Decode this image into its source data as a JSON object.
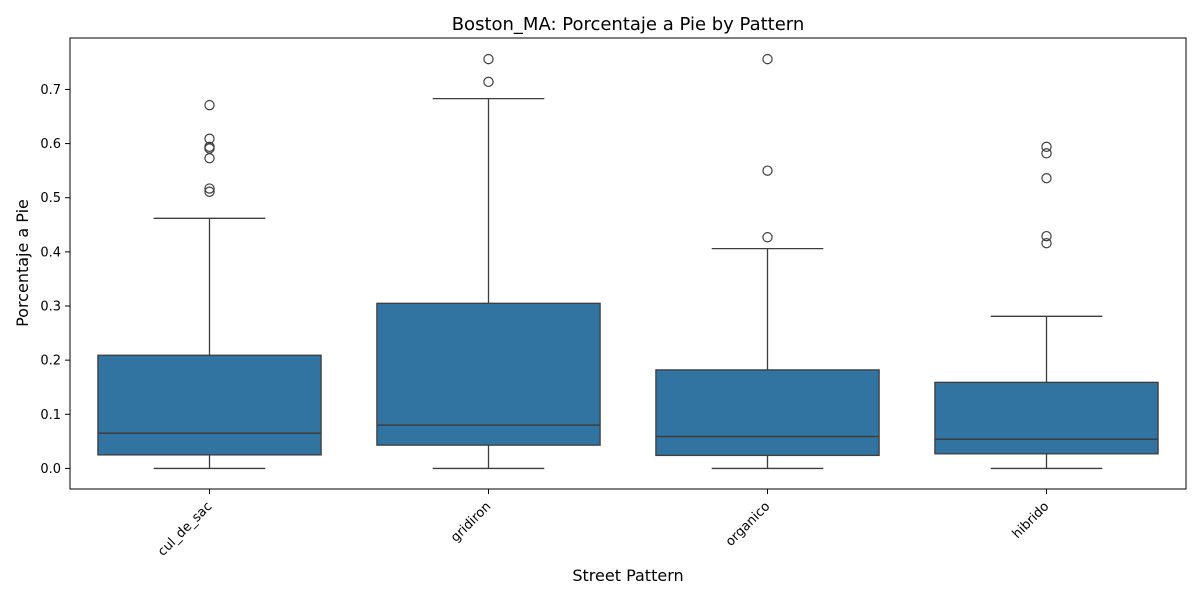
{
  "chart_data": {
    "type": "box",
    "title": "Boston_MA: Porcentaje a Pie by Pattern",
    "xlabel": "Street Pattern",
    "ylabel": "Porcentaje a Pie",
    "ylim": [
      -0.038,
      0.795
    ],
    "yticks": [
      0.0,
      0.1,
      0.2,
      0.3,
      0.4,
      0.5,
      0.6,
      0.7
    ],
    "ytick_labels": [
      "0.0",
      "0.1",
      "0.2",
      "0.3",
      "0.4",
      "0.5",
      "0.6",
      "0.7"
    ],
    "categories": [
      "cul_de_sac",
      "gridiron",
      "organico",
      "hibrido"
    ],
    "tick_rotation_deg": -45,
    "grid": false,
    "box_color": "#3274a1",
    "edge_color": "#3d3d3d",
    "boxes": [
      {
        "category": "cul_de_sac",
        "whisker_low": 0.0,
        "q1": 0.025,
        "median": 0.065,
        "q3": 0.209,
        "whisker_high": 0.462,
        "outliers": [
          0.671,
          0.609,
          0.594,
          0.591,
          0.573,
          0.517,
          0.511
        ]
      },
      {
        "category": "gridiron",
        "whisker_low": 0.0,
        "q1": 0.043,
        "median": 0.08,
        "q3": 0.305,
        "whisker_high": 0.683,
        "outliers": [
          0.756,
          0.714
        ]
      },
      {
        "category": "organico",
        "whisker_low": 0.0,
        "q1": 0.024,
        "median": 0.059,
        "q3": 0.182,
        "whisker_high": 0.406,
        "outliers": [
          0.756,
          0.55,
          0.427
        ]
      },
      {
        "category": "hibrido",
        "whisker_low": 0.0,
        "q1": 0.027,
        "median": 0.054,
        "q3": 0.159,
        "whisker_high": 0.281,
        "outliers": [
          0.594,
          0.582,
          0.536,
          0.429,
          0.416
        ]
      }
    ]
  }
}
